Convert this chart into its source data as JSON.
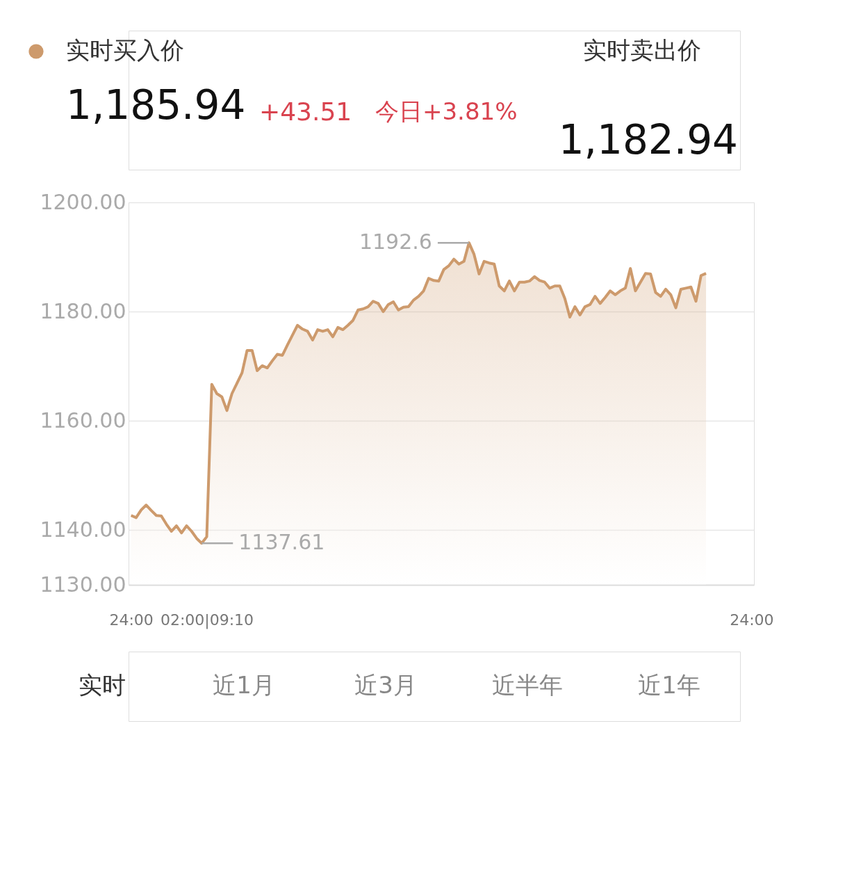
{
  "chart_data": {
    "type": "area",
    "legend": "top left",
    "grid": "y",
    "categories": [
      "24:00",
      null,
      null,
      null,
      null,
      null,
      null,
      null,
      null,
      null,
      null,
      null,
      null,
      null,
      null,
      "02:00|09:10",
      null,
      null,
      null,
      null,
      null,
      null,
      null,
      null,
      null,
      null,
      null,
      null,
      null,
      null,
      null,
      null,
      null,
      null,
      null,
      null,
      null,
      null,
      null,
      null,
      null,
      null,
      null,
      null,
      null,
      null,
      null,
      null,
      null,
      null,
      null,
      null,
      null,
      null,
      null,
      null,
      null,
      null,
      null,
      null,
      null,
      null,
      null,
      null,
      null,
      null,
      null,
      null,
      null,
      null,
      null,
      null,
      null,
      null,
      null,
      null,
      null,
      null,
      null,
      null,
      null,
      null,
      null,
      null,
      null,
      null,
      null,
      null,
      null,
      null,
      null,
      null,
      null,
      null,
      null,
      null,
      null,
      null,
      null,
      null,
      null,
      null,
      null,
      null,
      null,
      null,
      null,
      null,
      null,
      null,
      null,
      null,
      null,
      null,
      null,
      null,
      null,
      null,
      null,
      null,
      null,
      null,
      null,
      "24:00"
    ],
    "series": [
      {
        "name": "实时买入价",
        "color": "#cd9a6c",
        "values": [
          1142.7,
          1142.3,
          1143.7,
          1144.6,
          1143.6,
          1142.7,
          1142.6,
          1141.1,
          1139.8,
          1140.8,
          1139.5,
          1140.8,
          1139.8,
          1138.5,
          1137.61,
          1138.8,
          1166.7,
          1165.0,
          1164.4,
          1161.9,
          1165.0,
          1166.9,
          1168.8,
          1172.9,
          1172.9,
          1169.2,
          1170.1,
          1169.7,
          1171.0,
          1172.2,
          1172.0,
          1173.9,
          1175.7,
          1177.5,
          1176.8,
          1176.4,
          1174.8,
          1176.7,
          1176.4,
          1176.7,
          1175.4,
          1177.1,
          1176.7,
          1177.5,
          1178.4,
          1180.3,
          1180.5,
          1180.9,
          1181.9,
          1181.5,
          1180.0,
          1181.3,
          1181.8,
          1180.3,
          1180.8,
          1180.9,
          1182.1,
          1182.8,
          1183.8,
          1186.1,
          1185.7,
          1185.6,
          1187.7,
          1188.4,
          1189.6,
          1188.7,
          1189.2,
          1192.6,
          1190.5,
          1186.9,
          1189.2,
          1188.9,
          1188.7,
          1184.7,
          1183.8,
          1185.6,
          1183.8,
          1185.4,
          1185.4,
          1185.6,
          1186.4,
          1185.7,
          1185.4,
          1184.3,
          1184.7,
          1184.7,
          1182.4,
          1179.0,
          1180.9,
          1179.4,
          1180.9,
          1181.3,
          1182.8,
          1181.5,
          1182.6,
          1183.8,
          1183.1,
          1183.8,
          1184.3,
          1187.9,
          1183.8,
          1185.4,
          1187.0,
          1186.9,
          1183.5,
          1182.8,
          1184.1,
          1183.1,
          1180.7,
          1184.1,
          1184.3,
          1184.5,
          1181.9,
          1186.6,
          1187.0,
          null,
          null,
          null,
          null,
          null,
          null,
          null,
          null,
          null
        ]
      }
    ],
    "ylim": [
      1130,
      1200
    ],
    "yticks": [
      {
        "value": 1130,
        "label": "1130.00"
      },
      {
        "value": 1140,
        "label": "1140.00"
      },
      {
        "value": 1160,
        "label": "1160.00"
      },
      {
        "value": 1180,
        "label": "1180.00"
      },
      {
        "value": 1200,
        "label": "1200.00"
      }
    ],
    "annotations": [
      "1,185.94",
      "+43.51",
      "今日+3.81%",
      "实时卖出价",
      "1,182.94",
      "实时",
      "近1月",
      "近3月",
      "近半年",
      "近1年",
      "1192.6",
      "1137.61"
    ]
  }
}
